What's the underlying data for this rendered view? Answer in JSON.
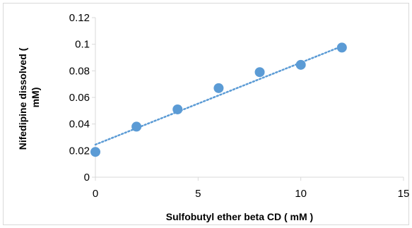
{
  "chart_data": {
    "type": "scatter",
    "title": "",
    "xlabel": "Sulfobutyl ether beta CD ( mM )",
    "ylabel_lines": [
      "Nifedipine dissolved (",
      "mM)"
    ],
    "xlim": [
      0,
      15
    ],
    "ylim": [
      0,
      0.12
    ],
    "x_ticks": [
      0,
      5,
      10,
      15
    ],
    "x_tick_labels": [
      "0",
      "5",
      "10",
      "15"
    ],
    "y_ticks": [
      0,
      0.02,
      0.04,
      0.06,
      0.08,
      0.1,
      0.12
    ],
    "y_tick_labels": [
      "0",
      "0.02",
      "0.04",
      "0.06",
      "0.08",
      "0.1",
      "0.12"
    ],
    "grid": false,
    "legend": "none",
    "series": [
      {
        "x": [
          0,
          2,
          4,
          6,
          8,
          10,
          12
        ],
        "y": [
          0.019,
          0.038,
          0.051,
          0.067,
          0.079,
          0.0845,
          0.0975
        ],
        "color": "#5b9bd5"
      }
    ],
    "trendline": {
      "kind": "linear",
      "style": "dotted",
      "color": "#5b9bd5",
      "x": [
        0,
        12
      ],
      "y": [
        0.0245,
        0.0985
      ]
    }
  }
}
